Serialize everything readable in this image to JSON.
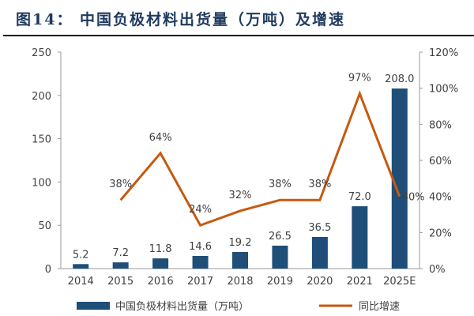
{
  "title": "图14：  中国负极材料出货量（万吨）及增速",
  "chart_data": {
    "type": "bar+line",
    "categories": [
      "2014",
      "2015",
      "2016",
      "2017",
      "2018",
      "2019",
      "2020",
      "2021",
      "2025E"
    ],
    "series": [
      {
        "name": "中国负极材料出货量（万吨）",
        "type": "bar",
        "axis": "left",
        "color": "#1f4e79",
        "values": [
          5.2,
          7.2,
          11.8,
          14.6,
          19.2,
          26.5,
          36.5,
          72.0,
          208.0
        ],
        "labels": [
          "5.2",
          "7.2",
          "11.8",
          "14.6",
          "19.2",
          "26.5",
          "36.5",
          "72.0",
          "208.0"
        ]
      },
      {
        "name": "同比增速",
        "type": "line",
        "axis": "right",
        "color": "#c55a11",
        "values": [
          null,
          38,
          64,
          24,
          32,
          38,
          38,
          97,
          40
        ],
        "labels": [
          "",
          "38%",
          "64%",
          "24%",
          "32%",
          "38%",
          "38%",
          "97%",
          "40%"
        ]
      }
    ],
    "left_axis": {
      "range": [
        0,
        250
      ],
      "ticks": [
        "0",
        "50",
        "100",
        "150",
        "200",
        "250"
      ]
    },
    "right_axis": {
      "range": [
        0,
        120
      ],
      "ticks": [
        "0%",
        "20%",
        "40%",
        "60%",
        "80%",
        "100%",
        "120%"
      ]
    },
    "grid": false,
    "legend": "bottom"
  }
}
